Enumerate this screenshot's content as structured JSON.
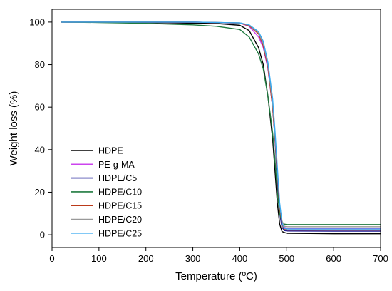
{
  "chart_data": {
    "type": "line",
    "title": "",
    "xlabel": "Temperature (ºC)",
    "ylabel": "Weight loss (%)",
    "xlim": [
      0,
      700
    ],
    "ylim": [
      -6,
      106
    ],
    "xticks": [
      0,
      100,
      200,
      300,
      400,
      500,
      600,
      700
    ],
    "yticks": [
      0,
      20,
      40,
      60,
      80,
      100
    ],
    "grid": false,
    "legend_position": "bottom-left",
    "series": [
      {
        "name": "HDPE",
        "color": "#000000",
        "points": [
          [
            20,
            100
          ],
          [
            100,
            100
          ],
          [
            200,
            99.8
          ],
          [
            300,
            99.5
          ],
          [
            350,
            99.3
          ],
          [
            400,
            98.5
          ],
          [
            420,
            96
          ],
          [
            440,
            88
          ],
          [
            450,
            80
          ],
          [
            460,
            65
          ],
          [
            470,
            45
          ],
          [
            475,
            30
          ],
          [
            480,
            15
          ],
          [
            485,
            5
          ],
          [
            490,
            1.5
          ],
          [
            500,
            0.7
          ],
          [
            550,
            0.6
          ],
          [
            600,
            0.5
          ],
          [
            700,
            0.5
          ]
        ]
      },
      {
        "name": "PE-g-MA",
        "color": "#cc44ee",
        "points": [
          [
            20,
            100
          ],
          [
            100,
            100
          ],
          [
            200,
            100
          ],
          [
            300,
            100
          ],
          [
            400,
            99.5
          ],
          [
            420,
            98
          ],
          [
            440,
            93
          ],
          [
            450,
            88
          ],
          [
            460,
            78
          ],
          [
            470,
            60
          ],
          [
            475,
            45
          ],
          [
            480,
            28
          ],
          [
            485,
            12
          ],
          [
            490,
            5
          ],
          [
            495,
            3.5
          ],
          [
            500,
            3
          ],
          [
            600,
            3
          ],
          [
            700,
            3
          ]
        ]
      },
      {
        "name": "HDPE/C5",
        "color": "#1a1a99",
        "points": [
          [
            20,
            100
          ],
          [
            100,
            100
          ],
          [
            200,
            100
          ],
          [
            300,
            100
          ],
          [
            400,
            99.6
          ],
          [
            420,
            98.5
          ],
          [
            440,
            94.5
          ],
          [
            450,
            89
          ],
          [
            460,
            79
          ],
          [
            470,
            60
          ],
          [
            475,
            45
          ],
          [
            480,
            26
          ],
          [
            485,
            10
          ],
          [
            490,
            3.5
          ],
          [
            495,
            2
          ],
          [
            500,
            1.8
          ],
          [
            600,
            1.7
          ],
          [
            700,
            1.7
          ]
        ]
      },
      {
        "name": "HDPE/C10",
        "color": "#1f7a3f",
        "points": [
          [
            20,
            100
          ],
          [
            100,
            99.8
          ],
          [
            200,
            99.4
          ],
          [
            300,
            98.7
          ],
          [
            350,
            98
          ],
          [
            400,
            96.5
          ],
          [
            420,
            93
          ],
          [
            440,
            85
          ],
          [
            450,
            78
          ],
          [
            460,
            65
          ],
          [
            470,
            48
          ],
          [
            475,
            35
          ],
          [
            480,
            20
          ],
          [
            485,
            10
          ],
          [
            490,
            6
          ],
          [
            495,
            5
          ],
          [
            500,
            4.8
          ],
          [
            600,
            4.8
          ],
          [
            700,
            4.8
          ]
        ]
      },
      {
        "name": "HDPE/C15",
        "color": "#bb3a1a",
        "points": [
          [
            20,
            100
          ],
          [
            100,
            100
          ],
          [
            200,
            100
          ],
          [
            300,
            100
          ],
          [
            400,
            99.5
          ],
          [
            420,
            98.3
          ],
          [
            440,
            94.5
          ],
          [
            450,
            89
          ],
          [
            460,
            79
          ],
          [
            470,
            60
          ],
          [
            475,
            46
          ],
          [
            480,
            29
          ],
          [
            485,
            13
          ],
          [
            490,
            5
          ],
          [
            495,
            2.5
          ],
          [
            500,
            2.2
          ],
          [
            600,
            2.2
          ],
          [
            700,
            2.2
          ]
        ]
      },
      {
        "name": "HDPE/C20",
        "color": "#999999",
        "points": [
          [
            20,
            100
          ],
          [
            100,
            100
          ],
          [
            200,
            100
          ],
          [
            300,
            100
          ],
          [
            400,
            99.6
          ],
          [
            420,
            98.6
          ],
          [
            440,
            95
          ],
          [
            450,
            90
          ],
          [
            460,
            80
          ],
          [
            470,
            62
          ],
          [
            475,
            47
          ],
          [
            480,
            30
          ],
          [
            485,
            14
          ],
          [
            490,
            6.5
          ],
          [
            495,
            4
          ],
          [
            500,
            3.8
          ],
          [
            600,
            3.8
          ],
          [
            700,
            3.8
          ]
        ]
      },
      {
        "name": "HDPE/C25",
        "color": "#38a9f0",
        "points": [
          [
            20,
            100
          ],
          [
            100,
            100
          ],
          [
            200,
            100
          ],
          [
            300,
            100
          ],
          [
            400,
            99.6
          ],
          [
            420,
            98.7
          ],
          [
            440,
            95.5
          ],
          [
            450,
            91
          ],
          [
            460,
            81
          ],
          [
            470,
            64
          ],
          [
            475,
            49
          ],
          [
            480,
            32
          ],
          [
            485,
            15
          ],
          [
            490,
            5.5
          ],
          [
            495,
            3
          ],
          [
            500,
            2.7
          ],
          [
            600,
            2.7
          ],
          [
            700,
            2.7
          ]
        ]
      }
    ]
  }
}
